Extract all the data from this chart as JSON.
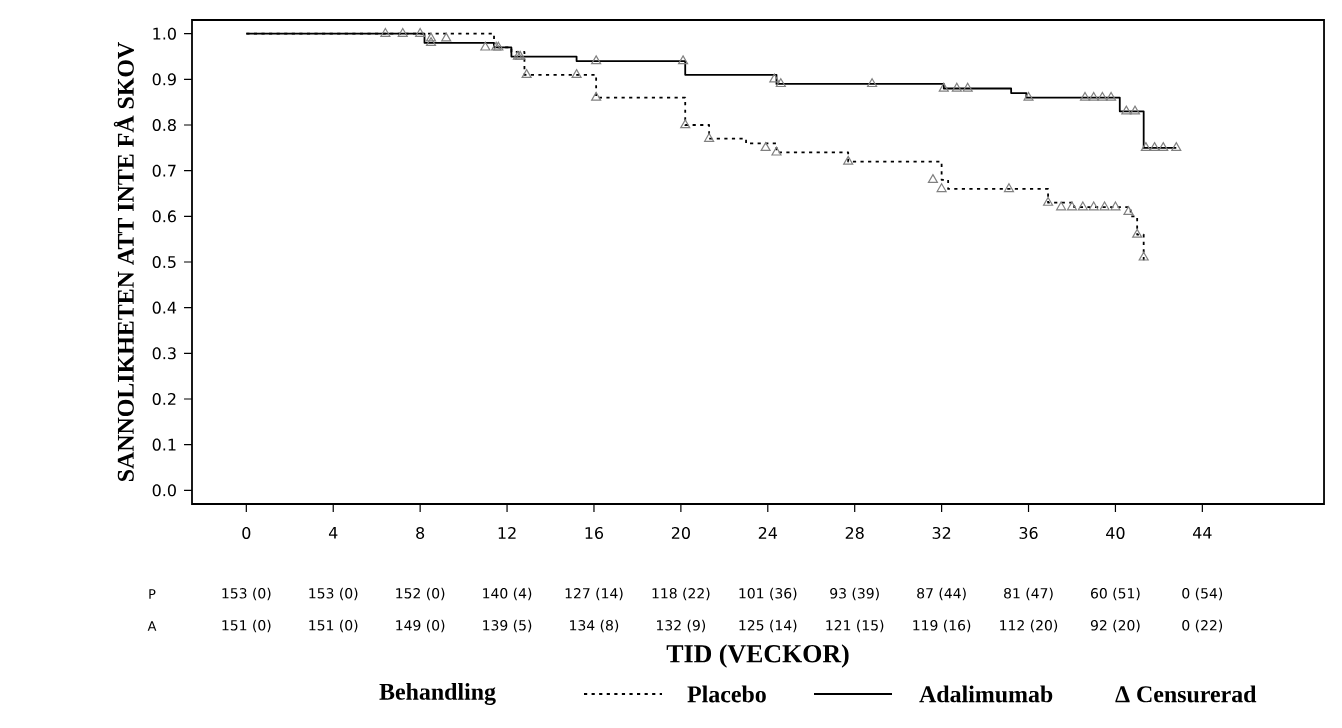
{
  "chart_data": {
    "type": "step",
    "xlabel": "TID (VECKOR)",
    "ylabel": "SANNOLIKHETEN ATT INTE FÅ SKOV",
    "legend_title": "Behandling",
    "legend": "bottom",
    "grid": false,
    "xlim": [
      -2.5,
      49.6
    ],
    "ylim": [
      -0.03,
      1.03
    ],
    "xticks": [
      0,
      4,
      8,
      12,
      16,
      20,
      24,
      28,
      32,
      36,
      40,
      44
    ],
    "yticks": [
      {
        "value": 0,
        "label": "0.0"
      },
      {
        "value": 0.1,
        "label": "0.1"
      },
      {
        "value": 0.2,
        "label": "0.2"
      },
      {
        "value": 0.3,
        "label": "0.3"
      },
      {
        "value": 0.4,
        "label": "0.4"
      },
      {
        "value": 0.5,
        "label": "0.5"
      },
      {
        "value": 0.6,
        "label": "0.6"
      },
      {
        "value": 0.7,
        "label": "0.7"
      },
      {
        "value": 0.8,
        "label": "0.8"
      },
      {
        "value": 0.9,
        "label": "0.9"
      },
      {
        "value": 1.0,
        "label": "1.0"
      }
    ],
    "series": [
      {
        "name": "Placebo",
        "color": "#000000",
        "line_style": "dotted",
        "x": [
          0,
          11.4,
          12.2,
          12.8,
          16.1,
          20.2,
          21.3,
          23.0,
          24.4,
          27.7,
          32.0,
          32.3,
          36.9,
          38.1,
          40.7,
          41.0,
          41.3
        ],
        "values": [
          1.0,
          0.97,
          0.96,
          0.91,
          0.86,
          0.8,
          0.77,
          0.76,
          0.74,
          0.72,
          0.68,
          0.66,
          0.63,
          0.62,
          0.6,
          0.56,
          0.5
        ]
      },
      {
        "name": "Adalimumab",
        "color": "#000000",
        "line_style": "solid",
        "x": [
          0,
          8.2,
          11.4,
          12.2,
          15.2,
          20.2,
          24.4,
          32.1,
          35.2,
          35.9,
          40.2,
          41.3,
          42.8
        ],
        "values": [
          1.0,
          0.98,
          0.97,
          0.95,
          0.94,
          0.91,
          0.89,
          0.88,
          0.87,
          0.86,
          0.83,
          0.75,
          0.75
        ]
      },
      {
        "type": "scatter",
        "marker": "triangle",
        "color": "#808080",
        "x": [
          8.0,
          8.5,
          9.2,
          11.0,
          11.5,
          12.5,
          12.9,
          15.2,
          16.1,
          20.2,
          21.3,
          23.9,
          24.4,
          27.7,
          31.6,
          32.0,
          35.1,
          36.9,
          37.5,
          38.0,
          38.5,
          39.0,
          39.5,
          40.0,
          40.6,
          41.0,
          41.3
        ],
        "values": [
          1.0,
          0.99,
          0.99,
          0.97,
          0.97,
          0.95,
          0.91,
          0.91,
          0.86,
          0.8,
          0.77,
          0.75,
          0.74,
          0.72,
          0.68,
          0.66,
          0.66,
          0.63,
          0.62,
          0.62,
          0.62,
          0.62,
          0.62,
          0.62,
          0.61,
          0.56,
          0.51
        ]
      },
      {
        "type": "scatter",
        "marker": "triangle",
        "color": "#808080",
        "x": [
          6.4,
          7.2,
          8.5,
          11.6,
          12.6,
          16.1,
          20.1,
          24.3,
          24.6,
          28.8,
          32.1,
          32.7,
          33.2,
          36.0,
          38.6,
          39.0,
          39.4,
          39.8,
          40.5,
          40.9,
          41.4,
          41.8,
          42.2,
          42.8
        ],
        "values": [
          1.0,
          1.0,
          0.98,
          0.97,
          0.95,
          0.94,
          0.94,
          0.9,
          0.89,
          0.89,
          0.88,
          0.88,
          0.88,
          0.86,
          0.86,
          0.86,
          0.86,
          0.86,
          0.83,
          0.83,
          0.75,
          0.75,
          0.75,
          0.75
        ]
      }
    ],
    "annotations": [
      "P",
      "153 (0)",
      "153 (0)",
      "152 (0)",
      "140 (4)",
      "127 (14)",
      "118 (22)",
      "101 (36)",
      "93 (39)",
      "87 (44)",
      "81 (47)",
      "60 (51)",
      "0 (54)",
      "A",
      "151 (0)",
      "151 (0)",
      "149 (0)",
      "139 (5)",
      "134 (8)",
      "132 (9)",
      "125 (14)",
      "121 (15)",
      "119 (16)",
      "112 (20)",
      "92 (20)",
      "0 (22)",
      "Δ Censurerad"
    ]
  }
}
